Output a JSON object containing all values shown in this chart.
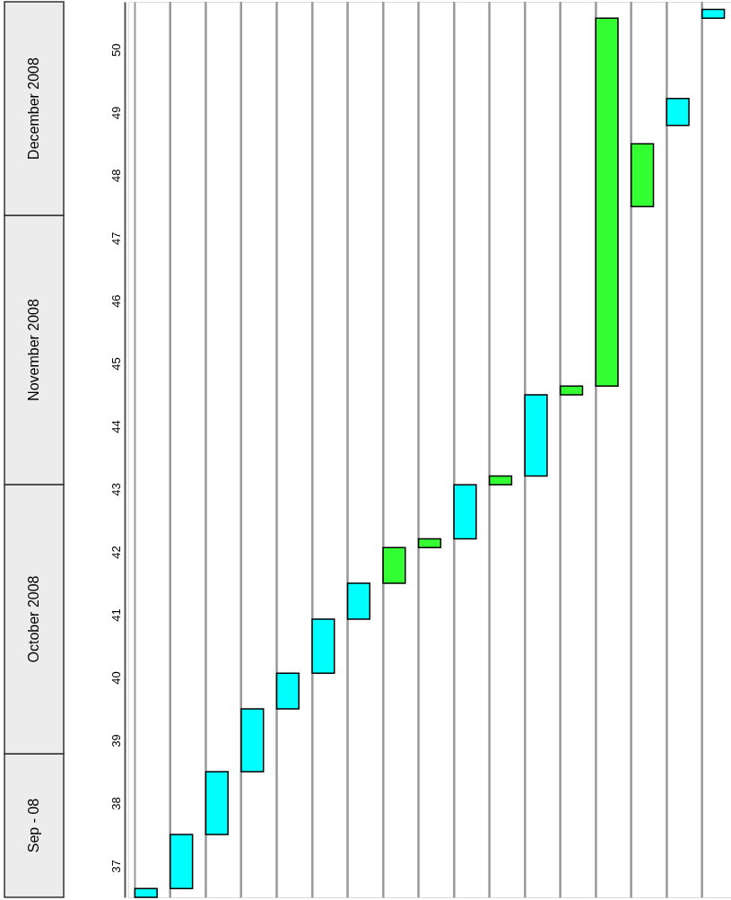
{
  "chart_data": {
    "type": "bar",
    "categories": [
      null,
      null,
      null,
      null,
      null,
      null,
      null,
      null,
      null,
      null,
      null,
      null,
      null,
      null,
      null,
      null,
      null
    ],
    "base": [
      37,
      37.14,
      38,
      39,
      40,
      40.57,
      41.43,
      42,
      42.57,
      42.71,
      43.57,
      43.71,
      45,
      45.14,
      48,
      49.29,
      51
    ],
    "values": [
      0.14,
      0.86,
      1,
      1,
      0.57,
      0.86,
      0.57,
      0.57,
      0.14,
      0.86,
      0.14,
      1.29,
      0.14,
      5.86,
      1,
      0.43,
      0.14
    ],
    "colors": [
      "#00ffff",
      "#00ffff",
      "#00ffff",
      "#00ffff",
      "#00ffff",
      "#00ffff",
      "#00ffff",
      "#33ff33",
      "#33ff33",
      "#00ffff",
      "#33ff33",
      "#00ffff",
      "#33ff33",
      "#33ff33",
      "#33ff33",
      "#00ffff",
      "#00ffff"
    ],
    "ylim": [
      37,
      51.26
    ],
    "yticks": [
      {
        "value": 37.5,
        "label": "37"
      },
      {
        "value": 38.5,
        "label": "38"
      },
      {
        "value": 39.5,
        "label": "39"
      },
      {
        "value": 40.5,
        "label": "40"
      },
      {
        "value": 41.5,
        "label": "41"
      },
      {
        "value": 42.5,
        "label": "42"
      },
      {
        "value": 43.5,
        "label": "43"
      },
      {
        "value": 44.5,
        "label": "44"
      },
      {
        "value": 45.5,
        "label": "45"
      },
      {
        "value": 46.5,
        "label": "46"
      },
      {
        "value": 47.5,
        "label": "47"
      },
      {
        "value": 48.5,
        "label": "48"
      },
      {
        "value": 49.5,
        "label": "49"
      },
      {
        "value": 50.5,
        "label": "50"
      }
    ],
    "annotations": [
      "Sep - 08",
      "October 2008",
      "November 2008",
      "December 2008"
    ],
    "grid": "x",
    "tick_labels": "y"
  }
}
